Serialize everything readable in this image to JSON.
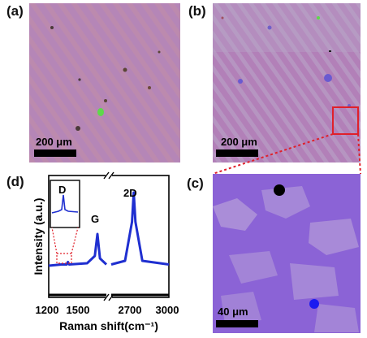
{
  "panels": {
    "a": {
      "label": "(a)",
      "scale_text": "200 μm"
    },
    "b": {
      "label": "(b)",
      "scale_text": "200 μm"
    },
    "c": {
      "label": "(c)",
      "scale_text": "40 μm"
    },
    "d": {
      "label": "(d)"
    }
  },
  "colors": {
    "substrate_a": "#b586b7",
    "substrate_b": "#b280b8",
    "substrate_c": "#8b63d6",
    "graphene_patch": "#b7a6c8",
    "raman_blue": "#1f2fd0",
    "highlight_red": "#e0202a",
    "marker_black": "#000000",
    "marker_blue": "#1b1bf0"
  },
  "chart_data": {
    "type": "line",
    "title": "",
    "xlabel": "Raman shift(cm⁻¹)",
    "ylabel": "Intensity (a.u.)",
    "x_tick_labels": [
      "1200",
      "1500",
      "2700",
      "3000"
    ],
    "axis_break": true,
    "x_segments": [
      [
        1200,
        1650
      ],
      [
        2500,
        3000
      ]
    ],
    "peak_labels": [
      "G",
      "2D"
    ],
    "inset_label": "D",
    "series": [
      {
        "color": "blue",
        "points": [
          [
            1200,
            0.26
          ],
          [
            1300,
            0.27
          ],
          [
            1340,
            0.27
          ],
          [
            1350,
            0.29
          ],
          [
            1360,
            0.27
          ],
          [
            1500,
            0.28
          ],
          [
            1560,
            0.34
          ],
          [
            1580,
            0.52
          ],
          [
            1600,
            0.32
          ],
          [
            1650,
            0.27
          ],
          [
            2500,
            0.27
          ],
          [
            2620,
            0.3
          ],
          [
            2680,
            0.62
          ],
          [
            2695,
            0.86
          ],
          [
            2710,
            0.62
          ],
          [
            2770,
            0.3
          ],
          [
            3000,
            0.27
          ]
        ]
      },
      {
        "color": "black",
        "points": [
          [
            1200,
            0.02
          ],
          [
            1650,
            0.02
          ],
          [
            2500,
            0.02
          ],
          [
            3000,
            0.02
          ]
        ]
      }
    ]
  }
}
